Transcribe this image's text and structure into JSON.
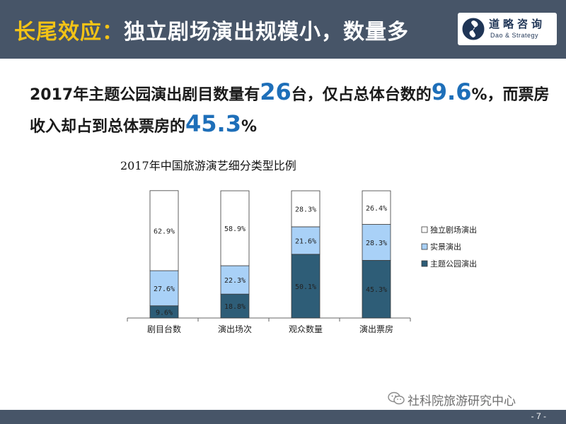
{
  "header": {
    "title_accent": "长尾效应：",
    "title_rest": "独立剧场演出规模小，数量多",
    "logo_cn": "道略咨询",
    "logo_en": "Dao & Strategy"
  },
  "headline": {
    "p1": "2017年主题公园演出剧目数量有",
    "v1": "26",
    "p2": "台，仅占总体台数的",
    "v2": "9.6",
    "p3": "%，而票房收入却占到总体票房的",
    "v3": "45.3",
    "p4": "%"
  },
  "colors": {
    "header_bg": "#475568",
    "accent": "#f3c316",
    "highlight": "#1e6fb9"
  },
  "chart_data": {
    "type": "bar",
    "stacked": true,
    "title": "2017年中国旅游演艺细分类型比例",
    "categories": [
      "剧目台数",
      "演出场次",
      "观众数量",
      "演出票房"
    ],
    "series": [
      {
        "name": "主题公园演出",
        "color": "#2e5d77",
        "values": [
          9.6,
          18.8,
          50.1,
          45.3
        ],
        "labels": [
          "9.6%",
          "18.8%",
          "50.1%",
          "45.3%"
        ]
      },
      {
        "name": "实景演出",
        "color": "#a9d1f7",
        "values": [
          27.6,
          22.3,
          21.6,
          28.3
        ],
        "labels": [
          "27.6%",
          "22.3%",
          "21.6%",
          "28.3%"
        ]
      },
      {
        "name": "独立剧场演出",
        "color": "#ffffff",
        "values": [
          62.9,
          58.9,
          28.3,
          26.4
        ],
        "labels": [
          "62.9%",
          "58.9%",
          "28.3%",
          "26.4%"
        ]
      }
    ],
    "ylim": [
      0,
      100
    ],
    "legend_position": "right"
  },
  "watermark": "社科院旅游研究中心",
  "page_number": "- 7 -"
}
